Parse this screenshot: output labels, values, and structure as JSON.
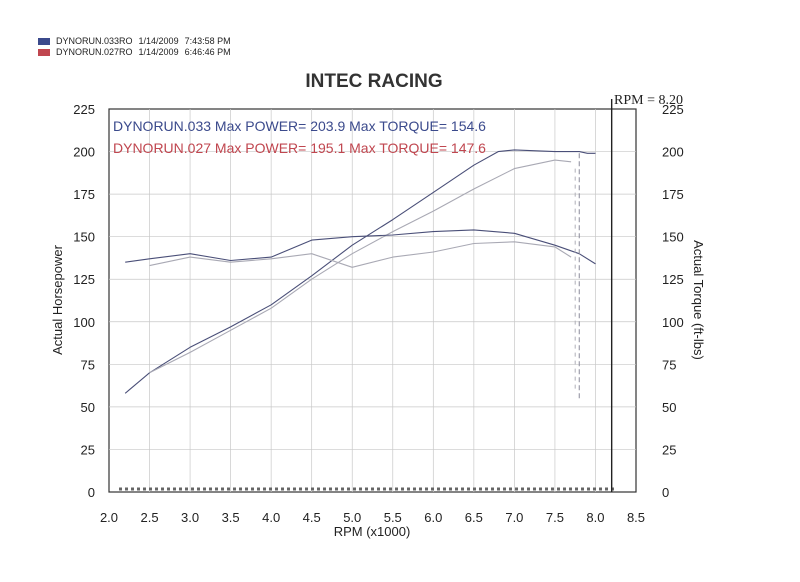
{
  "legend": [
    {
      "name": "DYNORUN.033RO",
      "date": "1/14/2009",
      "time": "7:43:58 PM",
      "color": "#3b4a8c"
    },
    {
      "name": "DYNORUN.027RO",
      "date": "1/14/2009",
      "time": "6:46:46 PM",
      "color": "#c0464f"
    }
  ],
  "rpm_marker": "RPM = 8.20",
  "chart_data": {
    "type": "line",
    "title": "INTEC RACING",
    "xlabel": "RPM (x1000)",
    "ylabel": "Actual Horsepower",
    "y2label": "Actual Torque (ft-lbs)",
    "xlim": [
      2.0,
      8.5
    ],
    "ylim": [
      0,
      225
    ],
    "y2lim": [
      0,
      225
    ],
    "xticks": [
      "2.0",
      "2.5",
      "3.0",
      "3.5",
      "4.0",
      "4.5",
      "5.0",
      "5.5",
      "6.0",
      "6.5",
      "7.0",
      "7.5",
      "8.0",
      "8.5"
    ],
    "yticks": [
      "0",
      "25",
      "50",
      "75",
      "100",
      "125",
      "150",
      "175",
      "200",
      "225"
    ],
    "grid": true,
    "summary": [
      {
        "run": "DYNORUN.033",
        "power_label": "Max POWER=",
        "power": "203.9",
        "torque_label": "Max TORQUE=",
        "torque": "154.6",
        "color": "#3b4a8c"
      },
      {
        "run": "DYNORUN.027",
        "power_label": "Max POWER=",
        "power": "195.1",
        "torque_label": "Max TORQUE=",
        "torque": "147.6",
        "color": "#c0464f"
      }
    ],
    "series": [
      {
        "name": "DYNORUN.033",
        "quantity": "power",
        "color": "#4a4f78",
        "x": [
          2.2,
          2.5,
          3.0,
          3.5,
          4.0,
          4.5,
          5.0,
          5.5,
          6.0,
          6.5,
          6.8,
          7.0,
          7.5,
          7.8,
          7.9,
          8.0
        ],
        "y": [
          58,
          70,
          85,
          97,
          110,
          127,
          145,
          160,
          176,
          192,
          200,
          201,
          200,
          200,
          199,
          199
        ]
      },
      {
        "name": "DYNORUN.027",
        "quantity": "power",
        "color": "#a9a9b4",
        "x": [
          2.5,
          3.0,
          3.5,
          4.0,
          4.5,
          5.0,
          5.5,
          6.0,
          6.5,
          7.0,
          7.5,
          7.7
        ],
        "y": [
          70,
          82,
          95,
          108,
          125,
          140,
          153,
          165,
          178,
          190,
          195,
          194
        ]
      },
      {
        "name": "DYNORUN.033",
        "quantity": "torque",
        "color": "#4a4f78",
        "x": [
          2.2,
          2.5,
          3.0,
          3.5,
          4.0,
          4.5,
          5.0,
          5.5,
          6.0,
          6.5,
          7.0,
          7.5,
          7.8,
          8.0
        ],
        "y": [
          135,
          137,
          140,
          136,
          138,
          148,
          150,
          151,
          153,
          154,
          152,
          145,
          140,
          134
        ]
      },
      {
        "name": "DYNORUN.027",
        "quantity": "torque",
        "color": "#a9a9b4",
        "x": [
          2.5,
          3.0,
          3.5,
          4.0,
          4.5,
          5.0,
          5.5,
          6.0,
          6.5,
          7.0,
          7.5,
          7.7
        ],
        "y": [
          133,
          138,
          135,
          137,
          140,
          132,
          138,
          141,
          146,
          147,
          144,
          138
        ]
      }
    ]
  }
}
